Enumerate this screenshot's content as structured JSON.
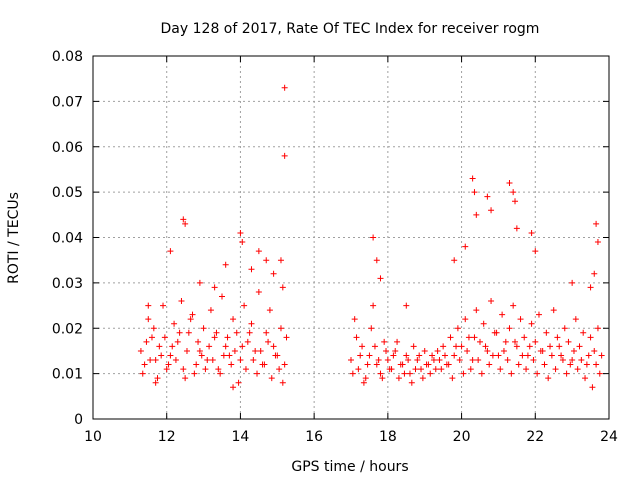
{
  "chart_data": {
    "type": "scatter",
    "title": "Day 128 of 2017, Rate Of TEC Index for receiver rogm",
    "xlabel": "GPS time / hours",
    "ylabel": "ROTI / TECUs",
    "xlim": [
      10,
      24
    ],
    "ylim": [
      0,
      0.08
    ],
    "x_ticks": [
      "10",
      "12",
      "14",
      "16",
      "18",
      "20",
      "22",
      "24"
    ],
    "y_ticks": [
      "0",
      "0.01",
      "0.02",
      "0.03",
      "0.04",
      "0.05",
      "0.06",
      "0.07",
      "0.08"
    ],
    "grid": true,
    "marker": "+",
    "color": "#ff0000",
    "series": [
      {
        "x": [
          11.3,
          11.4,
          11.5,
          11.6,
          11.7,
          11.8,
          11.9,
          12.0,
          12.1,
          12.2,
          12.3,
          12.4,
          12.5,
          12.6,
          12.7,
          12.8,
          12.9,
          13.0,
          13.1,
          13.2,
          13.3,
          13.4,
          13.5,
          13.6,
          13.7,
          13.8,
          13.9,
          14.0,
          14.1,
          14.2,
          14.3,
          14.4,
          14.5,
          14.6,
          14.7,
          14.8,
          14.9,
          15.0,
          15.1,
          15.2,
          15.25,
          11.35,
          11.45,
          11.55,
          11.65,
          11.75,
          11.85,
          11.95,
          12.05,
          12.15,
          12.25,
          12.35,
          12.45,
          12.55,
          12.65,
          12.75,
          12.85,
          12.95,
          13.05,
          13.15,
          13.25,
          13.35,
          13.45,
          13.55,
          13.65,
          13.75,
          13.85,
          13.95,
          14.05,
          14.15,
          14.25,
          14.35,
          14.45,
          14.55,
          14.65,
          14.75,
          14.85,
          14.95,
          15.05,
          15.15,
          11.5,
          11.7,
          12.1,
          12.45,
          12.5,
          12.9,
          13.3,
          13.6,
          13.8,
          14.0,
          14.05,
          14.3,
          14.5,
          14.7,
          14.9,
          15.1,
          15.15,
          15.2,
          15.2,
          17.0,
          17.1,
          17.2,
          17.3,
          17.4,
          17.5,
          17.6,
          17.7,
          17.8,
          17.9,
          18.0,
          18.1,
          18.2,
          18.3,
          18.4,
          18.5,
          18.6,
          18.7,
          18.8,
          18.9,
          19.0,
          19.1,
          19.2,
          19.3,
          19.4,
          19.5,
          19.6,
          19.7,
          19.8,
          19.9,
          20.0,
          20.1,
          20.2,
          20.3,
          20.4,
          20.5,
          20.6,
          20.7,
          20.8,
          20.9,
          21.0,
          21.1,
          21.2,
          21.3,
          21.4,
          21.5,
          21.6,
          21.7,
          21.8,
          21.9,
          22.0,
          22.1,
          22.2,
          22.3,
          22.4,
          22.5,
          22.6,
          22.7,
          22.8,
          22.9,
          23.0,
          23.1,
          23.2,
          23.3,
          23.4,
          23.5,
          23.6,
          23.7,
          23.8,
          17.05,
          17.15,
          17.25,
          17.35,
          17.45,
          17.55,
          17.65,
          17.75,
          17.85,
          17.95,
          18.05,
          18.15,
          18.25,
          18.35,
          18.45,
          18.55,
          18.65,
          18.75,
          18.85,
          18.95,
          19.05,
          19.15,
          19.25,
          19.35,
          19.45,
          19.55,
          19.65,
          19.75,
          19.85,
          19.95,
          20.05,
          20.15,
          20.25,
          20.35,
          20.45,
          20.55,
          20.65,
          20.75,
          20.85,
          20.95,
          21.05,
          21.15,
          21.25,
          21.35,
          21.45,
          21.55,
          21.65,
          21.75,
          21.85,
          21.95,
          22.05,
          22.15,
          22.25,
          22.35,
          22.45,
          22.55,
          22.65,
          22.75,
          22.85,
          22.95,
          23.05,
          23.15,
          23.25,
          23.35,
          23.45,
          23.55,
          23.65,
          23.75,
          17.6,
          17.7,
          17.8,
          18.5,
          19.8,
          20.1,
          20.3,
          20.35,
          20.4,
          20.7,
          20.8,
          21.3,
          21.4,
          21.45,
          21.5,
          21.9,
          22.0,
          23.0,
          23.5,
          23.6,
          23.65,
          23.7
        ],
        "y": [
          0.015,
          0.012,
          0.022,
          0.018,
          0.013,
          0.016,
          0.025,
          0.011,
          0.014,
          0.021,
          0.017,
          0.026,
          0.009,
          0.019,
          0.023,
          0.012,
          0.015,
          0.02,
          0.013,
          0.024,
          0.018,
          0.011,
          0.027,
          0.016,
          0.014,
          0.022,
          0.019,
          0.013,
          0.025,
          0.017,
          0.021,
          0.015,
          0.028,
          0.012,
          0.019,
          0.024,
          0.016,
          0.014,
          0.02,
          0.012,
          0.018,
          0.01,
          0.017,
          0.013,
          0.02,
          0.009,
          0.014,
          0.018,
          0.012,
          0.016,
          0.013,
          0.019,
          0.011,
          0.015,
          0.022,
          0.01,
          0.017,
          0.014,
          0.011,
          0.016,
          0.013,
          0.019,
          0.01,
          0.014,
          0.018,
          0.012,
          0.015,
          0.008,
          0.016,
          0.011,
          0.019,
          0.013,
          0.01,
          0.015,
          0.012,
          0.017,
          0.009,
          0.014,
          0.011,
          0.008,
          0.025,
          0.008,
          0.037,
          0.044,
          0.043,
          0.03,
          0.029,
          0.034,
          0.007,
          0.041,
          0.039,
          0.033,
          0.037,
          0.035,
          0.032,
          0.035,
          0.029,
          0.073,
          0.058,
          0.013,
          0.022,
          0.011,
          0.016,
          0.009,
          0.014,
          0.025,
          0.012,
          0.01,
          0.017,
          0.013,
          0.011,
          0.015,
          0.009,
          0.012,
          0.014,
          0.01,
          0.016,
          0.013,
          0.011,
          0.015,
          0.012,
          0.014,
          0.011,
          0.013,
          0.016,
          0.012,
          0.018,
          0.014,
          0.02,
          0.016,
          0.022,
          0.018,
          0.013,
          0.024,
          0.017,
          0.021,
          0.015,
          0.026,
          0.019,
          0.014,
          0.023,
          0.017,
          0.02,
          0.025,
          0.016,
          0.022,
          0.018,
          0.014,
          0.021,
          0.017,
          0.023,
          0.015,
          0.019,
          0.016,
          0.024,
          0.018,
          0.014,
          0.02,
          0.017,
          0.013,
          0.022,
          0.016,
          0.019,
          0.012,
          0.018,
          0.015,
          0.02,
          0.014,
          0.01,
          0.018,
          0.014,
          0.008,
          0.012,
          0.02,
          0.016,
          0.013,
          0.009,
          0.015,
          0.011,
          0.014,
          0.017,
          0.012,
          0.01,
          0.013,
          0.008,
          0.011,
          0.014,
          0.009,
          0.012,
          0.01,
          0.013,
          0.015,
          0.011,
          0.014,
          0.012,
          0.009,
          0.016,
          0.013,
          0.01,
          0.015,
          0.011,
          0.018,
          0.013,
          0.01,
          0.016,
          0.012,
          0.014,
          0.019,
          0.011,
          0.015,
          0.013,
          0.01,
          0.017,
          0.012,
          0.014,
          0.011,
          0.016,
          0.013,
          0.01,
          0.015,
          0.012,
          0.009,
          0.014,
          0.011,
          0.016,
          0.013,
          0.01,
          0.012,
          0.015,
          0.011,
          0.013,
          0.009,
          0.014,
          0.007,
          0.012,
          0.01,
          0.04,
          0.035,
          0.031,
          0.025,
          0.035,
          0.038,
          0.053,
          0.05,
          0.045,
          0.049,
          0.046,
          0.052,
          0.05,
          0.048,
          0.042,
          0.041,
          0.037,
          0.03,
          0.029,
          0.032,
          0.043,
          0.039
        ]
      }
    ]
  }
}
